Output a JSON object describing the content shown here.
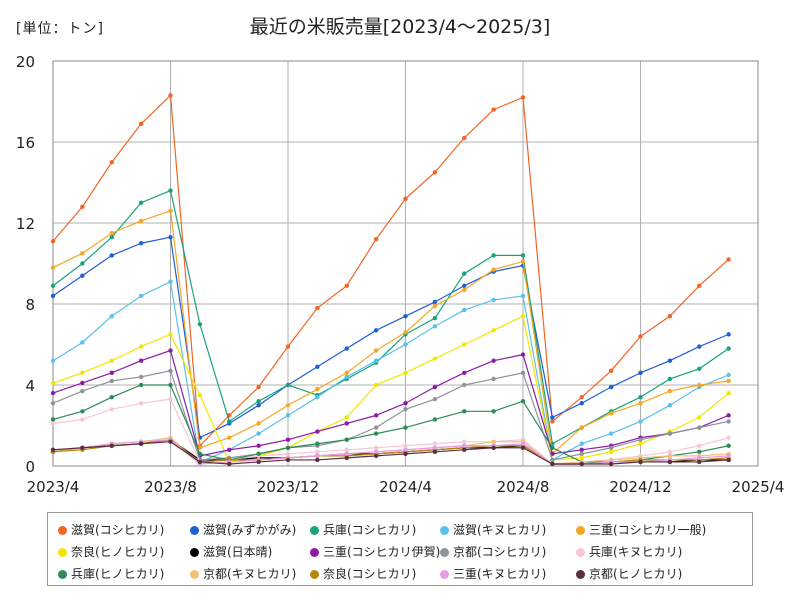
{
  "chart_data": {
    "type": "line",
    "title": "最近の米販売量[2023/4〜2025/3]",
    "unit_label": "[単位：トン]",
    "x_tick_labels": [
      "2023/4",
      "2023/8",
      "2023/12",
      "2024/4",
      "2024/8",
      "2024/12",
      "2025/4"
    ],
    "x_months": [
      "2023/4",
      "2023/5",
      "2023/6",
      "2023/7",
      "2023/8",
      "2023/9",
      "2023/10",
      "2023/11",
      "2023/12",
      "2024/1",
      "2024/2",
      "2024/3",
      "2024/4",
      "2024/5",
      "2024/6",
      "2024/7",
      "2024/8",
      "2024/9",
      "2024/10",
      "2024/11",
      "2024/12",
      "2025/1",
      "2025/2",
      "2025/3"
    ],
    "ylim": [
      0,
      20
    ],
    "y_ticks": [
      0,
      4,
      8,
      12,
      16,
      20
    ],
    "grid": true,
    "legend_position": "bottom",
    "series": [
      {
        "name": "滋賀(コシヒカリ)",
        "color": "#f26522",
        "values": [
          11.1,
          12.8,
          15.0,
          16.9,
          18.3,
          1.0,
          2.5,
          3.9,
          5.9,
          7.8,
          8.9,
          11.2,
          13.2,
          14.5,
          16.2,
          17.6,
          18.2,
          2.2,
          3.4,
          4.7,
          6.4,
          7.4,
          8.9,
          10.2
        ]
      },
      {
        "name": "滋賀(みずかがみ)",
        "color": "#1f5fd6",
        "values": [
          8.4,
          9.4,
          10.4,
          11.0,
          11.3,
          1.4,
          2.1,
          3.0,
          4.0,
          4.9,
          5.8,
          6.7,
          7.4,
          8.1,
          8.9,
          9.6,
          9.9,
          2.4,
          3.1,
          3.9,
          4.6,
          5.2,
          5.9,
          6.5
        ]
      },
      {
        "name": "兵庫(コシヒカリ)",
        "color": "#1aa37a",
        "values": [
          8.9,
          10.0,
          11.3,
          13.0,
          13.6,
          7.0,
          2.2,
          3.2,
          4.0,
          3.5,
          4.3,
          5.1,
          6.5,
          7.3,
          9.5,
          10.4,
          10.4,
          1.1,
          1.9,
          2.7,
          3.4,
          4.3,
          4.8,
          5.8
        ]
      },
      {
        "name": "滋賀(キヌヒカリ)",
        "color": "#5bc0eb",
        "values": [
          5.2,
          6.1,
          7.4,
          8.4,
          9.1,
          0.2,
          0.8,
          1.6,
          2.5,
          3.4,
          4.4,
          5.2,
          6.0,
          6.9,
          7.7,
          8.2,
          8.4,
          0.3,
          1.1,
          1.6,
          2.2,
          3.0,
          3.9,
          4.5
        ]
      },
      {
        "name": "三重(コシヒカリ一般)",
        "color": "#f5a623",
        "values": [
          9.8,
          10.5,
          11.5,
          12.1,
          12.6,
          0.9,
          1.4,
          2.1,
          3.0,
          3.8,
          4.6,
          5.7,
          6.6,
          7.9,
          8.7,
          9.7,
          10.1,
          0.6,
          1.9,
          2.6,
          3.1,
          3.7,
          4.0,
          4.2
        ]
      },
      {
        "name": "奈良(ヒノヒカリ)",
        "color": "#f2e600",
        "values": [
          4.1,
          4.6,
          5.2,
          5.9,
          6.5,
          3.5,
          0.2,
          0.5,
          0.9,
          1.7,
          2.4,
          4.0,
          4.6,
          5.3,
          6.0,
          6.7,
          7.4,
          0.3,
          0.4,
          0.7,
          1.1,
          1.7,
          2.4,
          3.6
        ]
      },
      {
        "name": "滋賀(日本晴)",
        "color": "#000000",
        "values": [
          0.7,
          0.9,
          1.0,
          1.1,
          1.3,
          0.3,
          0.3,
          0.4,
          0.4,
          0.5,
          0.6,
          0.6,
          0.7,
          0.8,
          0.9,
          0.9,
          1.0,
          0.1,
          0.1,
          0.2,
          0.2,
          0.2,
          0.3,
          0.3
        ]
      },
      {
        "name": "三重(コシヒカリ伊賀)",
        "color": "#8e1aa8",
        "values": [
          3.6,
          4.1,
          4.6,
          5.2,
          5.7,
          0.5,
          0.8,
          1.0,
          1.3,
          1.7,
          2.1,
          2.5,
          3.1,
          3.9,
          4.6,
          5.2,
          5.5,
          0.6,
          0.8,
          1.0,
          1.4,
          1.6,
          1.9,
          2.5
        ]
      },
      {
        "name": "京都(コシヒカリ)",
        "color": "#8d949b",
        "values": [
          3.1,
          3.7,
          4.2,
          4.4,
          4.7,
          0.3,
          0.4,
          0.6,
          0.9,
          1.0,
          1.3,
          1.9,
          2.8,
          3.3,
          4.0,
          4.3,
          4.6,
          0.3,
          0.6,
          0.9,
          1.3,
          1.6,
          1.9,
          2.2
        ]
      },
      {
        "name": "兵庫(キヌヒカリ)",
        "color": "#f7c6d9",
        "values": [
          2.1,
          2.3,
          2.8,
          3.1,
          3.3,
          0.2,
          0.3,
          0.5,
          0.6,
          0.7,
          0.8,
          0.9,
          1.0,
          1.1,
          1.2,
          1.2,
          1.3,
          0.1,
          0.2,
          0.3,
          0.5,
          0.7,
          1.0,
          1.4
        ]
      },
      {
        "name": "兵庫(ヒノヒカリ)",
        "color": "#2e8b57",
        "values": [
          2.3,
          2.7,
          3.4,
          4.0,
          4.0,
          0.6,
          0.3,
          0.6,
          0.9,
          1.1,
          1.3,
          1.6,
          1.9,
          2.3,
          2.7,
          2.7,
          3.2,
          0.9,
          0.2,
          0.2,
          0.3,
          0.5,
          0.7,
          1.0
        ]
      },
      {
        "name": "京都(キヌヒカリ)",
        "color": "#f0c27b",
        "values": [
          0.7,
          0.9,
          1.1,
          1.2,
          1.4,
          0.1,
          0.2,
          0.3,
          0.4,
          0.5,
          0.6,
          0.7,
          0.8,
          0.9,
          1.0,
          1.2,
          1.2,
          0.1,
          0.2,
          0.3,
          0.4,
          0.5,
          0.5,
          0.6
        ]
      },
      {
        "name": "奈良(コシヒカリ)",
        "color": "#b8860b",
        "values": [
          0.7,
          0.8,
          1.0,
          1.1,
          1.3,
          0.2,
          0.3,
          0.3,
          0.4,
          0.5,
          0.5,
          0.6,
          0.7,
          0.8,
          0.9,
          1.0,
          1.0,
          0.1,
          0.1,
          0.2,
          0.3,
          0.3,
          0.3,
          0.4
        ]
      },
      {
        "name": "三重(キヌヒカリ)",
        "color": "#e89be6",
        "values": [
          0.8,
          0.9,
          1.1,
          1.2,
          1.3,
          0.1,
          0.2,
          0.3,
          0.4,
          0.5,
          0.6,
          0.7,
          0.8,
          0.9,
          1.0,
          1.0,
          1.1,
          0.1,
          0.1,
          0.2,
          0.2,
          0.3,
          0.4,
          0.5
        ]
      },
      {
        "name": "京都(ヒノヒカリ)",
        "color": "#5a2e3e",
        "values": [
          0.8,
          0.9,
          1.0,
          1.1,
          1.2,
          0.2,
          0.1,
          0.2,
          0.3,
          0.3,
          0.4,
          0.5,
          0.6,
          0.7,
          0.8,
          0.9,
          0.9,
          0.1,
          0.1,
          0.1,
          0.2,
          0.2,
          0.2,
          0.3
        ]
      }
    ]
  }
}
